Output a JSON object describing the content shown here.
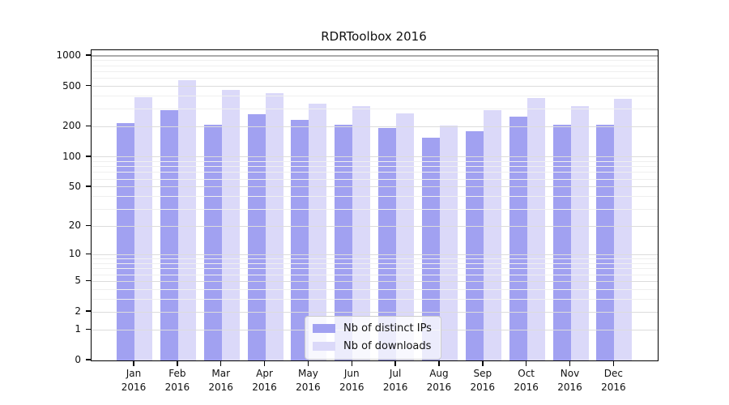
{
  "chart_data": {
    "type": "bar",
    "title": "RDRToolbox 2016",
    "categories": [
      "Jan",
      "Feb",
      "Mar",
      "Apr",
      "May",
      "Jun",
      "Jul",
      "Aug",
      "Sep",
      "Oct",
      "Nov",
      "Dec"
    ],
    "year_label": "2016",
    "series": [
      {
        "name": "Nb of distinct IPs",
        "color": "#a1a1f1",
        "values": [
          215,
          290,
          210,
          265,
          235,
          210,
          195,
          155,
          180,
          250,
          210,
          210
        ]
      },
      {
        "name": "Nb of downloads",
        "color": "#dbd9f9",
        "values": [
          390,
          580,
          465,
          430,
          340,
          320,
          270,
          205,
          290,
          380,
          320,
          375
        ]
      }
    ],
    "yscale": "log1p",
    "ylim": [
      0,
      1135
    ],
    "ytick_values": [
      1000,
      500,
      200,
      100,
      50,
      20,
      10,
      5,
      2,
      1,
      0
    ],
    "ytick_labels": [
      "1000",
      "500",
      "200",
      "100",
      "50",
      "20",
      "10",
      "5",
      "2",
      "1",
      "0"
    ],
    "grid": "on",
    "grid_minor_color": "#efefef",
    "grid_major_color": "#dcdcdc",
    "grid_top_color": "#ababab",
    "legend_position": "lower center",
    "xlabel": "",
    "ylabel": ""
  }
}
